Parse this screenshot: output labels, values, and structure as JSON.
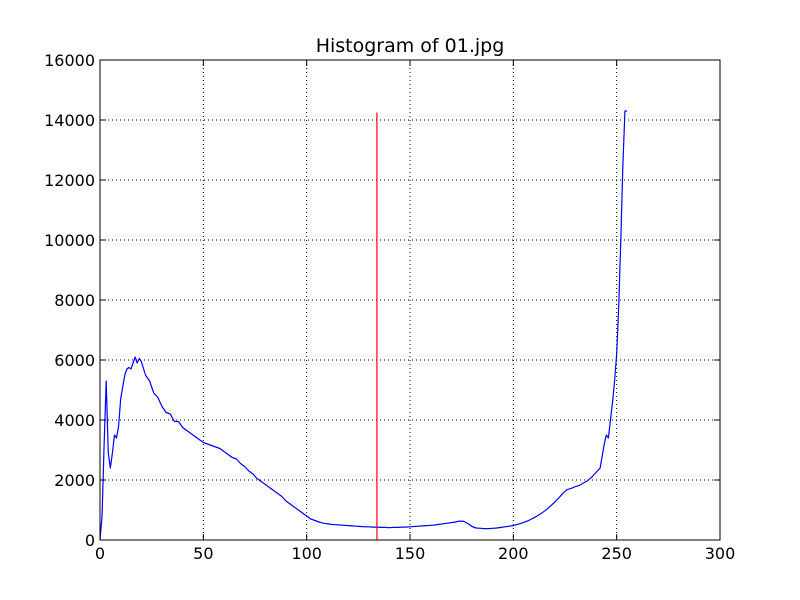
{
  "chart_data": {
    "type": "line",
    "title": "Histogram of 01.jpg",
    "xlabel": "",
    "ylabel": "",
    "xlim": [
      0,
      300
    ],
    "ylim": [
      0,
      16000
    ],
    "xticks": [
      0,
      50,
      100,
      150,
      200,
      250,
      300
    ],
    "yticks": [
      0,
      2000,
      4000,
      6000,
      8000,
      10000,
      12000,
      14000,
      16000
    ],
    "grid": true,
    "series": [
      {
        "name": "",
        "color": "#0000ff",
        "x": [
          0,
          1,
          2,
          3,
          4,
          5,
          6,
          7,
          8,
          9,
          10,
          11,
          12,
          13,
          14,
          15,
          16,
          17,
          18,
          19,
          20,
          22,
          24,
          26,
          28,
          30,
          32,
          34,
          36,
          38,
          40,
          42,
          44,
          46,
          48,
          50,
          52,
          54,
          56,
          58,
          60,
          62,
          64,
          66,
          68,
          70,
          72,
          74,
          76,
          78,
          80,
          82,
          84,
          86,
          88,
          90,
          92,
          94,
          96,
          98,
          100,
          102,
          104,
          106,
          108,
          110,
          112,
          114,
          116,
          118,
          120,
          122,
          124,
          126,
          128,
          130,
          132,
          134,
          136,
          138,
          140,
          142,
          144,
          146,
          148,
          150,
          152,
          154,
          156,
          158,
          160,
          162,
          164,
          166,
          168,
          170,
          172,
          174,
          176,
          178,
          180,
          182,
          184,
          186,
          188,
          190,
          192,
          194,
          196,
          198,
          200,
          202,
          204,
          206,
          208,
          210,
          212,
          214,
          216,
          218,
          220,
          222,
          224,
          226,
          228,
          230,
          232,
          234,
          236,
          238,
          240,
          242,
          244,
          245,
          246,
          247,
          248,
          249,
          250,
          251,
          252,
          253,
          254,
          255
        ],
        "y": [
          0,
          800,
          3200,
          5300,
          2900,
          2400,
          2900,
          3500,
          3400,
          3800,
          4700,
          5100,
          5500,
          5700,
          5750,
          5700,
          5900,
          6100,
          5900,
          6050,
          5950,
          5500,
          5300,
          4900,
          4750,
          4450,
          4250,
          4200,
          3950,
          3950,
          3750,
          3650,
          3550,
          3450,
          3350,
          3250,
          3200,
          3150,
          3100,
          3050,
          2950,
          2850,
          2750,
          2700,
          2550,
          2450,
          2300,
          2200,
          2050,
          1950,
          1850,
          1750,
          1650,
          1550,
          1450,
          1300,
          1200,
          1100,
          1000,
          900,
          800,
          700,
          650,
          600,
          560,
          540,
          520,
          510,
          500,
          490,
          480,
          470,
          460,
          450,
          440,
          440,
          430,
          430,
          420,
          420,
          410,
          420,
          420,
          430,
          430,
          440,
          450,
          460,
          470,
          480,
          490,
          500,
          520,
          540,
          560,
          580,
          600,
          630,
          620,
          550,
          450,
          400,
          390,
          380,
          380,
          390,
          400,
          420,
          440,
          460,
          480,
          520,
          560,
          610,
          670,
          740,
          820,
          910,
          1010,
          1130,
          1260,
          1400,
          1560,
          1680,
          1720,
          1780,
          1820,
          1900,
          1980,
          2100,
          2250,
          2400,
          3200,
          3500,
          3400,
          4000,
          4600,
          5300,
          6200,
          7800,
          10000,
          12500,
          14300,
          14300
        ]
      },
      {
        "name": "",
        "color": "#ff0000",
        "x": [
          134,
          134
        ],
        "y": [
          0,
          14250
        ]
      }
    ]
  }
}
